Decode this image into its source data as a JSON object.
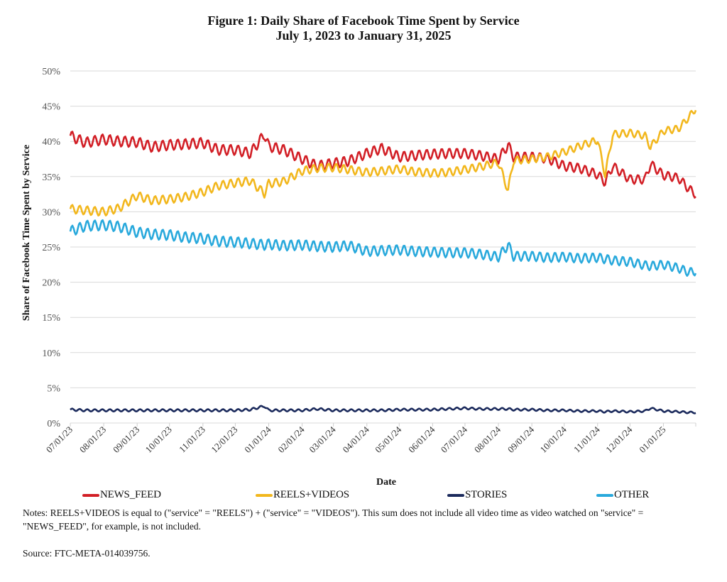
{
  "chart_data": {
    "type": "line",
    "title": "Figure 1: Daily Share of Facebook Time Spent by Service",
    "subtitle": "July 1, 2023 to January 31, 2025",
    "xlabel": "Date",
    "ylabel": "Share of Facebook Time Spent by Service",
    "ylim": [
      0,
      50
    ],
    "yticks": [
      "0%",
      "5%",
      "10%",
      "15%",
      "20%",
      "25%",
      "30%",
      "35%",
      "40%",
      "45%",
      "50%"
    ],
    "ytick_values": [
      0,
      5,
      10,
      15,
      20,
      25,
      30,
      35,
      40,
      45,
      50
    ],
    "xlim": [
      "2023-07-01",
      "2025-01-31"
    ],
    "xticks": [
      "07/01/23",
      "08/01/23",
      "09/01/23",
      "10/01/23",
      "11/01/23",
      "12/01/23",
      "01/01/24",
      "02/01/24",
      "03/01/24",
      "04/01/24",
      "05/01/24",
      "06/01/24",
      "07/01/24",
      "08/01/24",
      "09/01/24",
      "10/01/24",
      "11/01/24",
      "12/01/24",
      "01/01/25"
    ],
    "grid": true,
    "legend_position": "bottom",
    "x": [
      "2023-07-01",
      "2023-07-15",
      "2023-08-01",
      "2023-08-15",
      "2023-09-01",
      "2023-09-15",
      "2023-10-01",
      "2023-10-15",
      "2023-11-01",
      "2023-11-15",
      "2023-12-01",
      "2023-12-15",
      "2023-12-28",
      "2024-01-01",
      "2024-01-15",
      "2024-02-01",
      "2024-02-15",
      "2024-03-01",
      "2024-03-15",
      "2024-04-01",
      "2024-04-15",
      "2024-05-01",
      "2024-05-15",
      "2024-06-01",
      "2024-06-15",
      "2024-07-01",
      "2024-07-15",
      "2024-08-01",
      "2024-08-10",
      "2024-08-15",
      "2024-09-01",
      "2024-09-15",
      "2024-10-01",
      "2024-10-15",
      "2024-11-01",
      "2024-11-08",
      "2024-11-15",
      "2024-12-01",
      "2024-12-15",
      "2024-12-20",
      "2025-01-01",
      "2025-01-15",
      "2025-01-25",
      "2025-01-31"
    ],
    "series": [
      {
        "name": "NEWS_FEED",
        "color": "#d21f26",
        "values": [
          40.8,
          39.8,
          40.3,
          40.0,
          39.9,
          39.2,
          39.5,
          39.6,
          39.8,
          38.8,
          38.8,
          38.3,
          41.0,
          39.3,
          38.8,
          37.5,
          36.5,
          36.9,
          37.2,
          38.3,
          39.0,
          37.8,
          38.0,
          38.2,
          38.3,
          38.3,
          38.0,
          37.5,
          39.5,
          37.8,
          37.8,
          37.6,
          36.5,
          36.2,
          35.3,
          34.2,
          36.5,
          34.6,
          34.6,
          36.8,
          35.2,
          34.8,
          33.2,
          32.5
        ]
      },
      {
        "name": "REELS+VIDEOS",
        "color": "#f2b71d",
        "values": [
          30.4,
          30.2,
          30.0,
          30.5,
          32.3,
          31.6,
          31.8,
          32.1,
          32.8,
          33.7,
          34.1,
          34.4,
          32.6,
          34.0,
          34.3,
          35.8,
          36.2,
          36.3,
          36.0,
          35.6,
          35.8,
          36.1,
          35.7,
          35.5,
          35.6,
          36.0,
          36.4,
          37.0,
          33.0,
          37.3,
          37.5,
          37.8,
          38.5,
          39.3,
          40.2,
          35.2,
          41.0,
          41.2,
          40.8,
          39.2,
          41.5,
          41.8,
          43.5,
          44.7
        ]
      },
      {
        "name": "STORIES",
        "color": "#1b2a5c",
        "values": [
          1.9,
          1.8,
          1.8,
          1.8,
          1.8,
          1.8,
          1.8,
          1.8,
          1.8,
          1.8,
          1.8,
          1.9,
          2.4,
          1.8,
          1.8,
          1.8,
          2.0,
          1.8,
          1.8,
          1.8,
          1.8,
          1.9,
          1.9,
          1.9,
          2.0,
          2.1,
          2.0,
          2.0,
          2.0,
          1.9,
          1.9,
          1.8,
          1.8,
          1.7,
          1.7,
          1.6,
          1.7,
          1.6,
          1.7,
          2.1,
          1.7,
          1.6,
          1.5,
          1.5
        ]
      },
      {
        "name": "OTHER",
        "color": "#29a9dc",
        "values": [
          27.2,
          28.0,
          28.1,
          27.9,
          27.1,
          26.8,
          26.7,
          26.4,
          26.2,
          25.8,
          25.7,
          25.5,
          25.3,
          25.4,
          25.2,
          25.3,
          25.1,
          25.0,
          25.2,
          24.4,
          24.5,
          24.6,
          24.4,
          24.3,
          24.2,
          24.2,
          24.0,
          23.6,
          25.3,
          23.7,
          23.7,
          23.5,
          23.6,
          23.4,
          23.5,
          23.3,
          23.1,
          22.9,
          22.4,
          22.3,
          22.5,
          22.0,
          21.4,
          21.6
        ]
      }
    ]
  },
  "legend": [
    {
      "label": "NEWS_FEED",
      "color": "#d21f26"
    },
    {
      "label": "REELS+VIDEOS",
      "color": "#f2b71d"
    },
    {
      "label": "STORIES",
      "color": "#1b2a5c"
    },
    {
      "label": "OTHER",
      "color": "#29a9dc"
    }
  ],
  "notes": "Notes: REELS+VIDEOS is equal to (\"service\" = \"REELS\") + (\"service\" = \"VIDEOS\").  This sum does not include all video time as video watched on \"service\" = \"NEWS_FEED\", for example, is not included.",
  "source": "Source: FTC-META-014039756."
}
